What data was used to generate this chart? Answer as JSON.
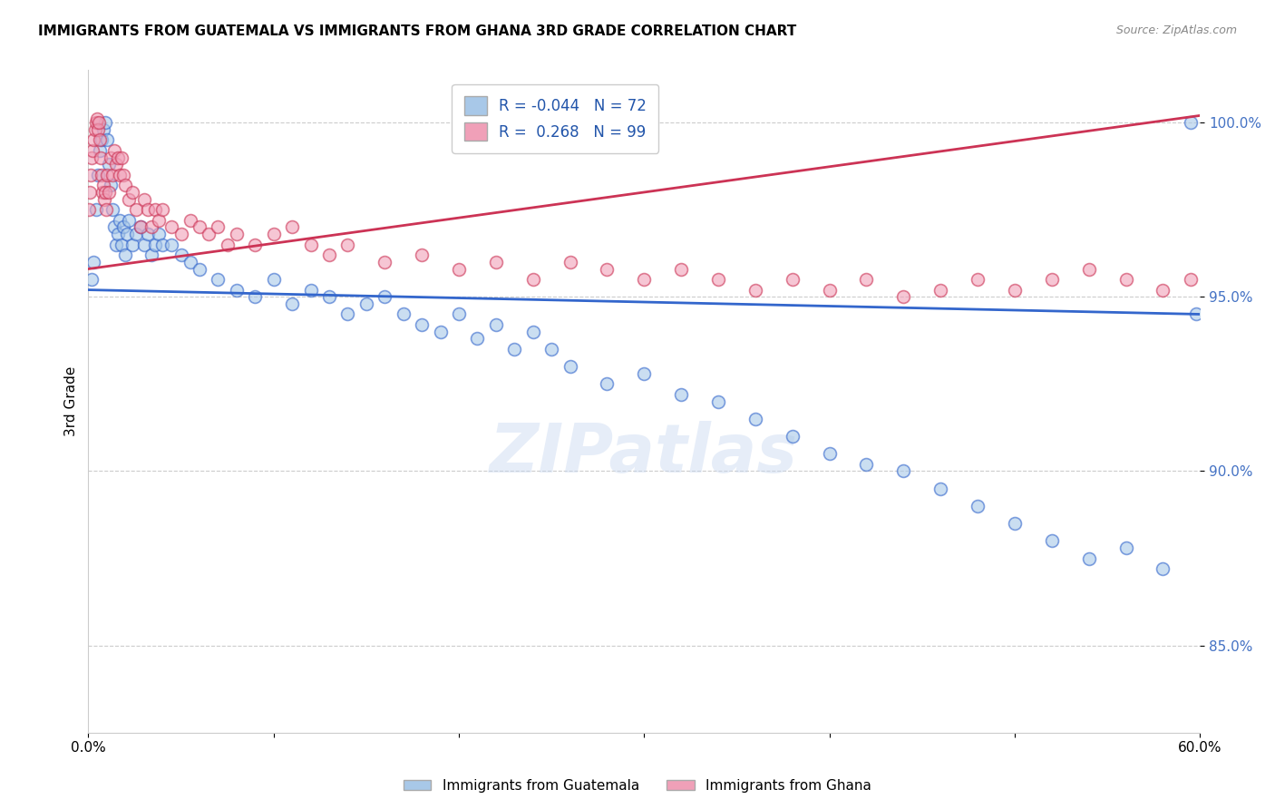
{
  "title": "IMMIGRANTS FROM GUATEMALA VS IMMIGRANTS FROM GHANA 3RD GRADE CORRELATION CHART",
  "source": "Source: ZipAtlas.com",
  "ylabel": "3rd Grade",
  "xlim": [
    0.0,
    60.0
  ],
  "ylim": [
    82.5,
    101.5
  ],
  "r_guatemala": -0.044,
  "n_guatemala": 72,
  "r_ghana": 0.268,
  "n_ghana": 99,
  "legend_label_1": "Immigrants from Guatemala",
  "legend_label_2": "Immigrants from Ghana",
  "watermark": "ZIPatlas",
  "blue_color": "#a8c8e8",
  "pink_color": "#f0a0b8",
  "blue_line_color": "#3366cc",
  "pink_line_color": "#cc3355",
  "yticks": [
    85.0,
    90.0,
    95.0,
    100.0
  ],
  "ytick_labels": [
    "85.0%",
    "90.0%",
    "95.0%",
    "100.0%"
  ],
  "xtick_labels": [
    "0.0%",
    "",
    "",
    "",
    "",
    "",
    "60.0%"
  ],
  "guatemala_x": [
    0.2,
    0.3,
    0.4,
    0.5,
    0.6,
    0.7,
    0.8,
    0.9,
    1.0,
    1.1,
    1.2,
    1.3,
    1.4,
    1.5,
    1.6,
    1.7,
    1.8,
    1.9,
    2.0,
    2.1,
    2.2,
    2.4,
    2.6,
    2.8,
    3.0,
    3.2,
    3.4,
    3.6,
    3.8,
    4.0,
    4.5,
    5.0,
    5.5,
    6.0,
    7.0,
    8.0,
    9.0,
    10.0,
    11.0,
    12.0,
    13.0,
    14.0,
    15.0,
    16.0,
    17.0,
    18.0,
    19.0,
    20.0,
    21.0,
    22.0,
    23.0,
    24.0,
    25.0,
    26.0,
    28.0,
    30.0,
    32.0,
    34.0,
    36.0,
    38.0,
    40.0,
    42.0,
    44.0,
    46.0,
    48.0,
    50.0,
    52.0,
    54.0,
    56.0,
    58.0,
    59.5,
    59.8
  ],
  "guatemala_y": [
    95.5,
    96.0,
    97.5,
    98.5,
    99.2,
    99.5,
    99.8,
    100.0,
    99.5,
    98.8,
    98.2,
    97.5,
    97.0,
    96.5,
    96.8,
    97.2,
    96.5,
    97.0,
    96.2,
    96.8,
    97.2,
    96.5,
    96.8,
    97.0,
    96.5,
    96.8,
    96.2,
    96.5,
    96.8,
    96.5,
    96.5,
    96.2,
    96.0,
    95.8,
    95.5,
    95.2,
    95.0,
    95.5,
    94.8,
    95.2,
    95.0,
    94.5,
    94.8,
    95.0,
    94.5,
    94.2,
    94.0,
    94.5,
    93.8,
    94.2,
    93.5,
    94.0,
    93.5,
    93.0,
    92.5,
    92.8,
    92.2,
    92.0,
    91.5,
    91.0,
    90.5,
    90.2,
    90.0,
    89.5,
    89.0,
    88.5,
    88.0,
    87.5,
    87.8,
    87.2,
    100.0,
    94.5
  ],
  "ghana_x": [
    0.05,
    0.1,
    0.15,
    0.2,
    0.25,
    0.3,
    0.35,
    0.4,
    0.45,
    0.5,
    0.55,
    0.6,
    0.65,
    0.7,
    0.75,
    0.8,
    0.85,
    0.9,
    0.95,
    1.0,
    1.1,
    1.2,
    1.3,
    1.4,
    1.5,
    1.6,
    1.7,
    1.8,
    1.9,
    2.0,
    2.2,
    2.4,
    2.6,
    2.8,
    3.0,
    3.2,
    3.4,
    3.6,
    3.8,
    4.0,
    4.5,
    5.0,
    5.5,
    6.0,
    6.5,
    7.0,
    7.5,
    8.0,
    9.0,
    10.0,
    11.0,
    12.0,
    13.0,
    14.0,
    16.0,
    18.0,
    20.0,
    22.0,
    24.0,
    26.0,
    28.0,
    30.0,
    32.0,
    34.0,
    36.0,
    38.0,
    40.0,
    42.0,
    44.0,
    46.0,
    48.0,
    50.0,
    52.0,
    54.0,
    56.0,
    58.0,
    59.5
  ],
  "ghana_y": [
    97.5,
    98.0,
    98.5,
    99.0,
    99.2,
    99.5,
    99.8,
    100.0,
    100.1,
    99.8,
    100.0,
    99.5,
    99.0,
    98.5,
    98.0,
    98.2,
    97.8,
    98.0,
    97.5,
    98.5,
    98.0,
    99.0,
    98.5,
    99.2,
    98.8,
    99.0,
    98.5,
    99.0,
    98.5,
    98.2,
    97.8,
    98.0,
    97.5,
    97.0,
    97.8,
    97.5,
    97.0,
    97.5,
    97.2,
    97.5,
    97.0,
    96.8,
    97.2,
    97.0,
    96.8,
    97.0,
    96.5,
    96.8,
    96.5,
    96.8,
    97.0,
    96.5,
    96.2,
    96.5,
    96.0,
    96.2,
    95.8,
    96.0,
    95.5,
    96.0,
    95.8,
    95.5,
    95.8,
    95.5,
    95.2,
    95.5,
    95.2,
    95.5,
    95.0,
    95.2,
    95.5,
    95.2,
    95.5,
    95.8,
    95.5,
    95.2,
    95.5
  ]
}
